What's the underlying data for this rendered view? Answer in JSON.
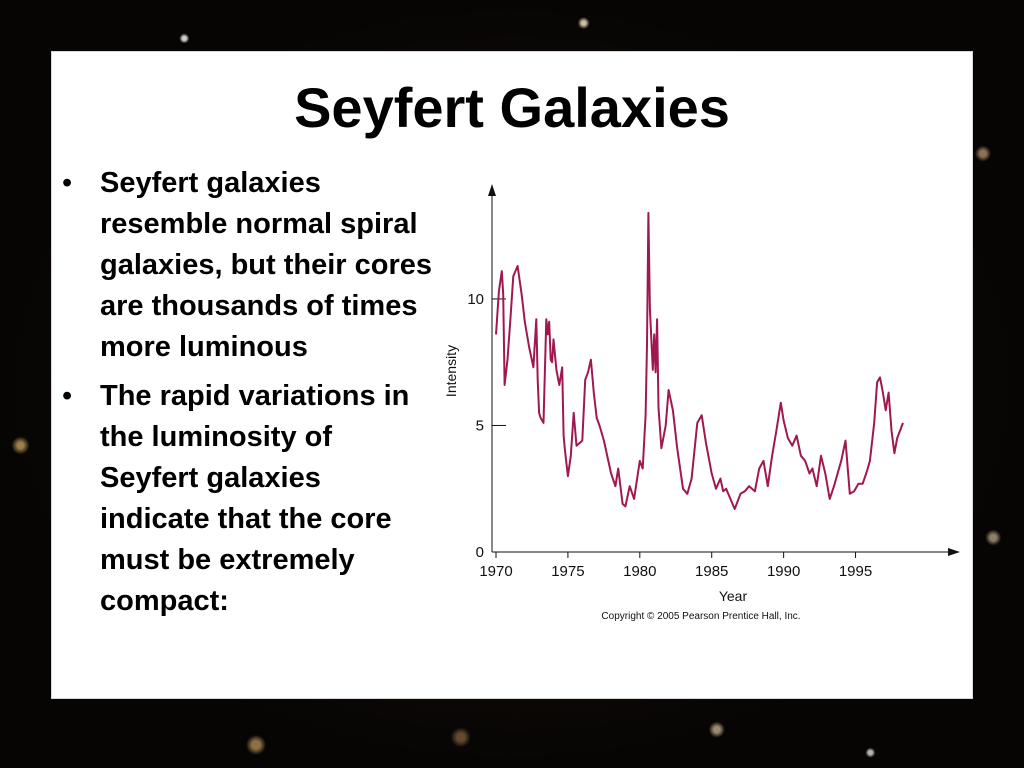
{
  "slide": {
    "title": "Seyfert Galaxies",
    "bullets": [
      "Seyfert galaxies resemble normal spiral galaxies, but their cores are thousands of times more luminous",
      "The rapid variations in the luminosity of Seyfert galaxies indicate that the core must be extremely compact:"
    ],
    "bullet_glyph": "•"
  },
  "chart_data": {
    "type": "line",
    "xlabel": "Year",
    "ylabel": "Intensity",
    "copyright": "Copyright © 2005 Pearson Prentice Hall, Inc.",
    "x_ticks": [
      1970,
      1975,
      1980,
      1985,
      1990,
      1995
    ],
    "y_ticks": [
      0,
      5,
      10
    ],
    "xlim": [
      1970,
      1998.3
    ],
    "ylim": [
      0,
      14.5
    ],
    "line_color": "#a01850",
    "series": [
      {
        "x": [
          1970.0,
          1970.2,
          1970.4,
          1970.5,
          1970.6,
          1970.8,
          1971.0,
          1971.2,
          1971.5,
          1971.8,
          1972.0,
          1972.3,
          1972.6,
          1972.8,
          1972.9,
          1973.0,
          1973.1,
          1973.3,
          1973.5,
          1973.6,
          1973.7,
          1973.8,
          1973.9,
          1974.0,
          1974.2,
          1974.4,
          1974.6,
          1974.7,
          1974.8,
          1975.0,
          1975.2,
          1975.4,
          1975.6,
          1975.8,
          1976.0,
          1976.2,
          1976.4,
          1976.6,
          1976.8,
          1977.0,
          1977.2,
          1977.5,
          1978.0,
          1978.3,
          1978.5,
          1978.8,
          1979.0,
          1979.3,
          1979.6,
          1980.0,
          1980.2,
          1980.4,
          1980.5,
          1980.6,
          1980.7,
          1980.9,
          1981.0,
          1981.1,
          1981.2,
          1981.3,
          1981.5,
          1981.8,
          1982.0,
          1982.3,
          1982.6,
          1983.0,
          1983.3,
          1983.6,
          1984.0,
          1984.3,
          1984.6,
          1985.0,
          1985.3,
          1985.6,
          1985.8,
          1986.0,
          1986.3,
          1986.6,
          1987.0,
          1987.3,
          1987.6,
          1988.0,
          1988.3,
          1988.6,
          1988.9,
          1989.2,
          1989.5,
          1989.8,
          1990.0,
          1990.3,
          1990.6,
          1990.9,
          1991.2,
          1991.5,
          1991.8,
          1992.0,
          1992.3,
          1992.6,
          1992.9,
          1993.2,
          1993.5,
          1993.8,
          1994.0,
          1994.3,
          1994.6,
          1994.9,
          1995.2,
          1995.5,
          1995.8,
          1996.0,
          1996.3,
          1996.5,
          1996.7,
          1996.9,
          1997.1,
          1997.3,
          1997.5,
          1997.7,
          1997.9,
          1998.1,
          1998.3
        ],
        "y": [
          8.6,
          10.3,
          11.1,
          10.2,
          6.6,
          7.6,
          9.2,
          10.9,
          11.3,
          10.1,
          9.1,
          8.1,
          7.3,
          9.2,
          6.8,
          5.5,
          5.3,
          5.1,
          9.2,
          8.6,
          9.1,
          7.6,
          7.5,
          8.4,
          7.2,
          6.6,
          7.3,
          4.6,
          4.0,
          3.0,
          3.8,
          5.5,
          4.2,
          4.3,
          4.4,
          6.8,
          7.1,
          7.6,
          6.3,
          5.3,
          5.0,
          4.4,
          3.1,
          2.6,
          3.3,
          1.9,
          1.8,
          2.6,
          2.1,
          3.6,
          3.3,
          5.4,
          8.2,
          13.4,
          9.6,
          7.2,
          8.6,
          7.1,
          9.2,
          5.7,
          4.1,
          5.0,
          6.4,
          5.6,
          4.1,
          2.5,
          2.3,
          2.9,
          5.1,
          5.4,
          4.3,
          3.1,
          2.5,
          2.9,
          2.4,
          2.5,
          2.1,
          1.7,
          2.3,
          2.4,
          2.6,
          2.4,
          3.3,
          3.6,
          2.6,
          3.8,
          4.8,
          5.9,
          5.2,
          4.5,
          4.2,
          4.6,
          3.8,
          3.6,
          3.1,
          3.3,
          2.6,
          3.8,
          3.1,
          2.1,
          2.6,
          3.2,
          3.6,
          4.4,
          2.3,
          2.4,
          2.7,
          2.7,
          3.2,
          3.6,
          5.1,
          6.7,
          6.9,
          6.3,
          5.6,
          6.3,
          4.8,
          3.9,
          4.5,
          4.8,
          5.1
        ]
      }
    ]
  }
}
